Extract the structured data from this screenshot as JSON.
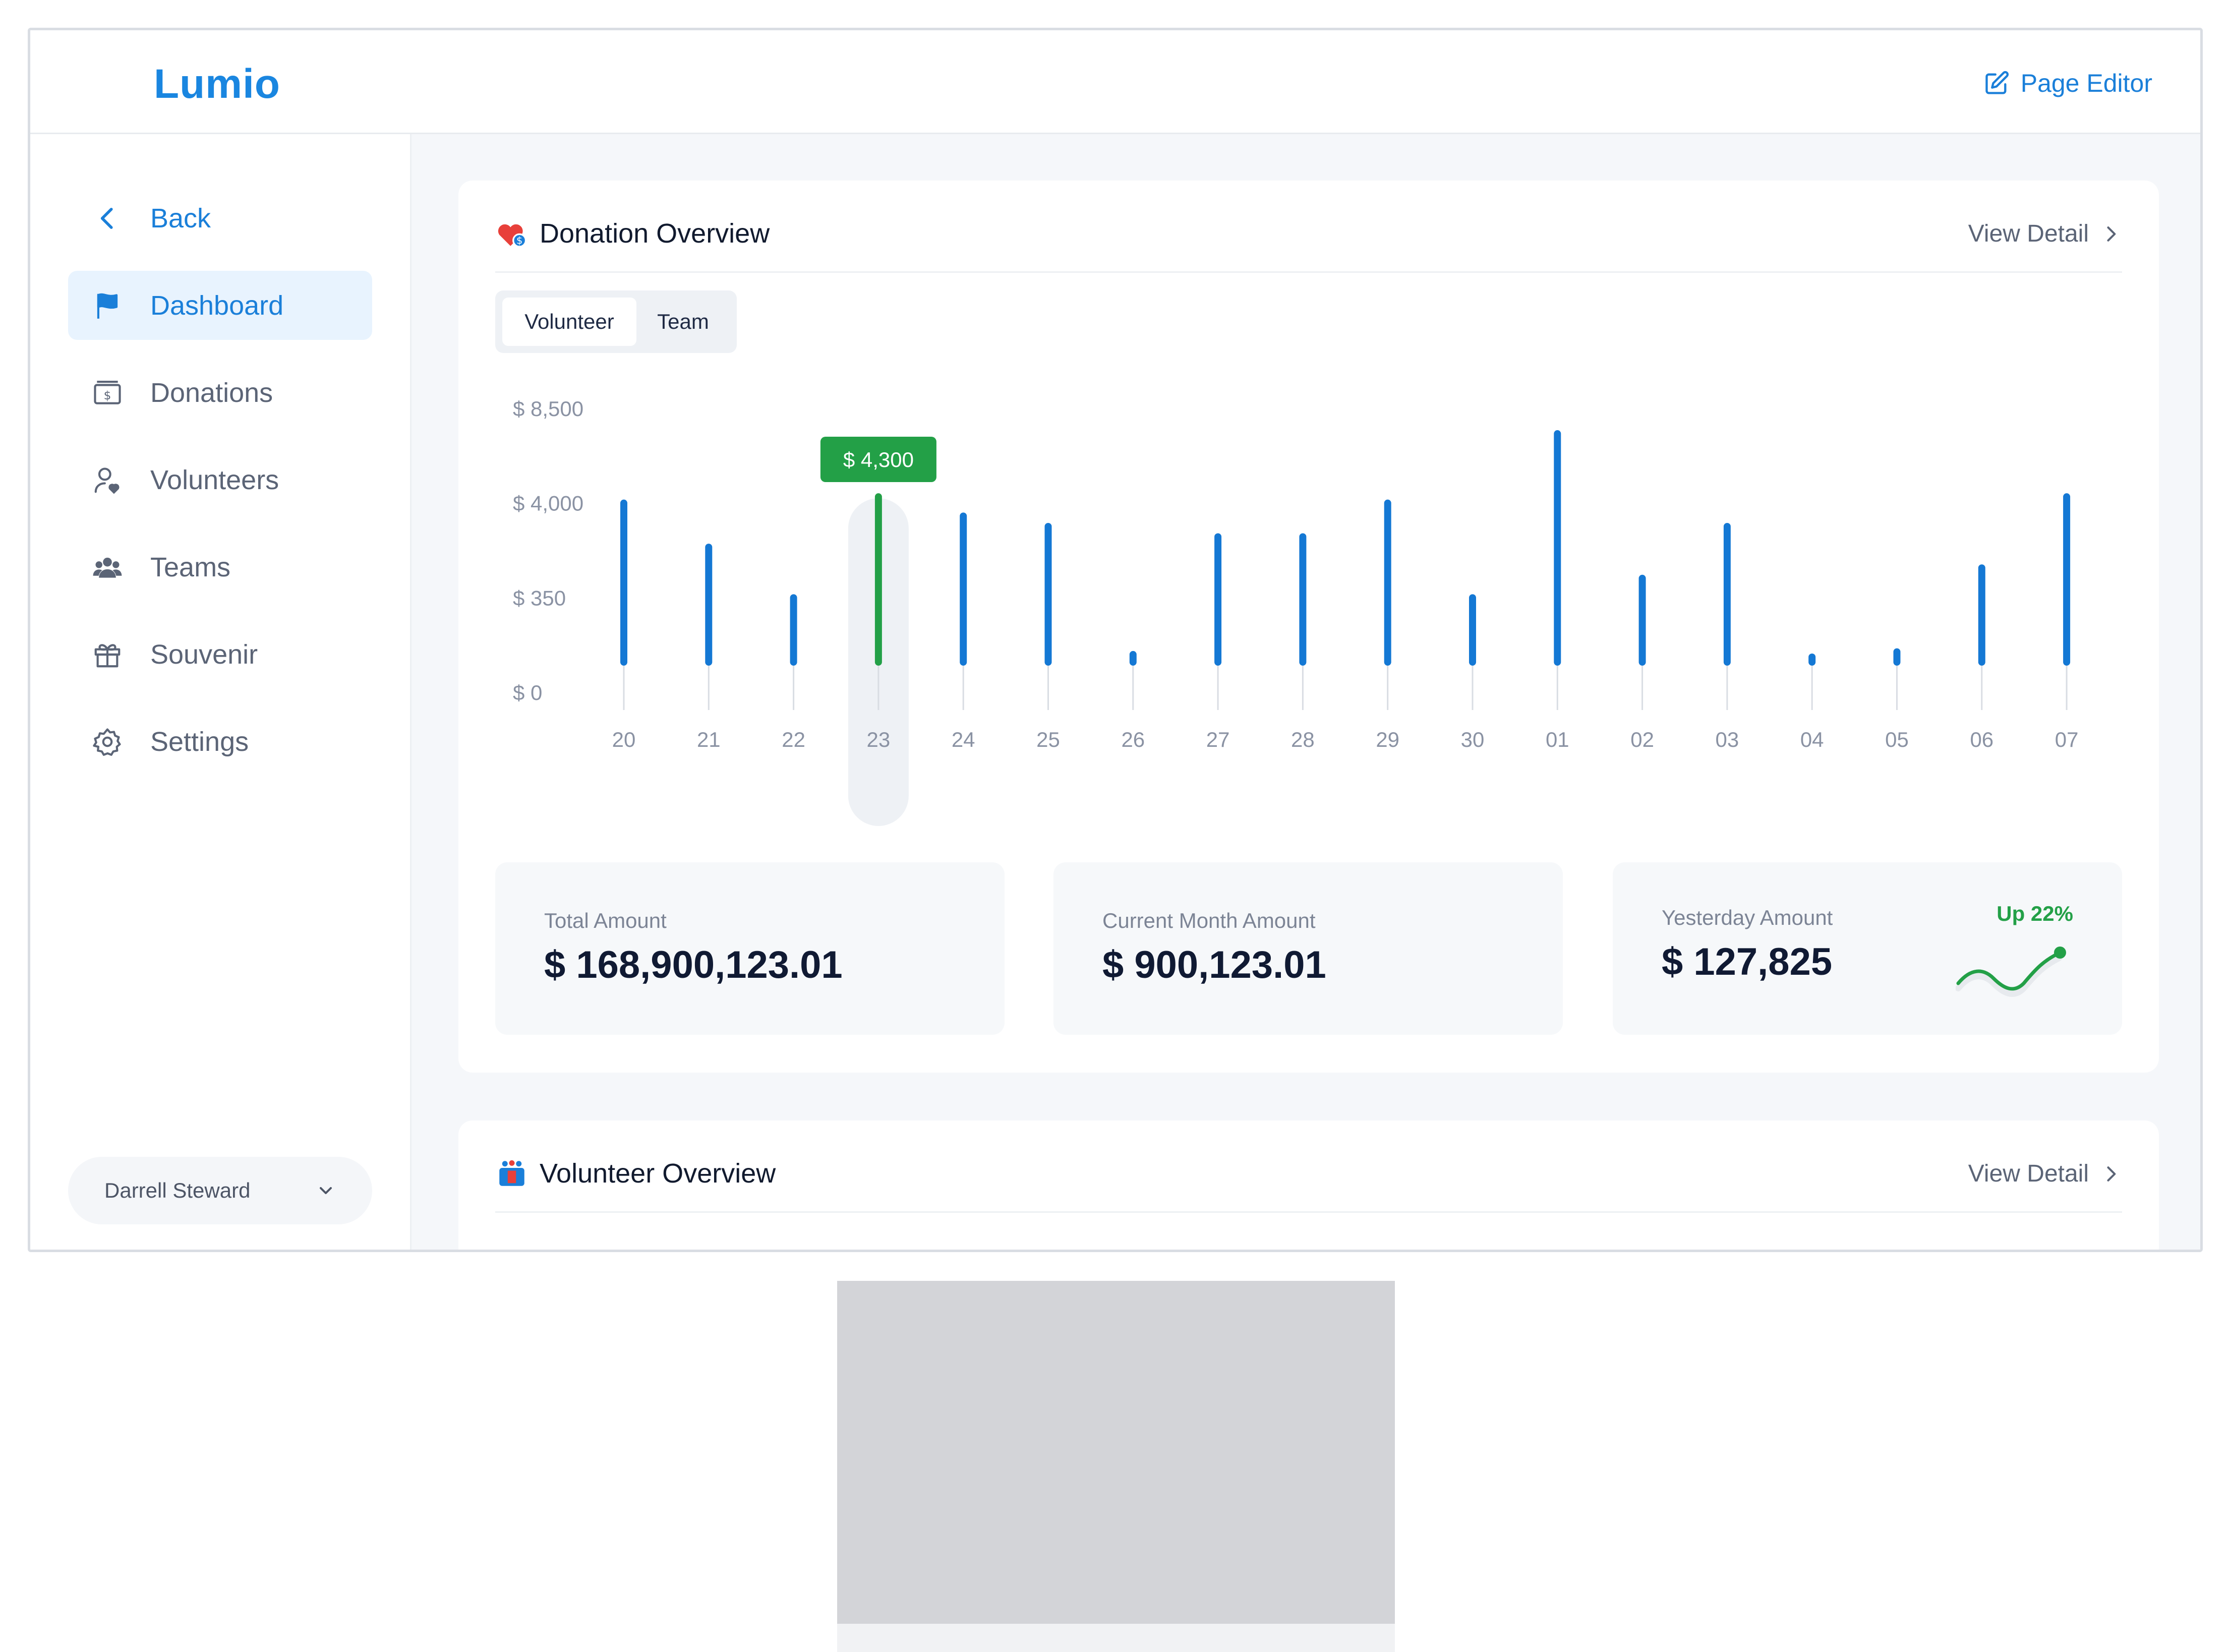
{
  "app": {
    "logo": "Lumio",
    "page_editor_label": "Page Editor"
  },
  "sidebar": {
    "back_label": "Back",
    "items": [
      {
        "label": "Dashboard",
        "icon": "flag-icon",
        "active": true
      },
      {
        "label": "Donations",
        "icon": "money-icon",
        "active": false
      },
      {
        "label": "Volunteers",
        "icon": "user-heart-icon",
        "active": false
      },
      {
        "label": "Teams",
        "icon": "team-icon",
        "active": false
      },
      {
        "label": "Souvenir",
        "icon": "gift-icon",
        "active": false
      },
      {
        "label": "Settings",
        "icon": "gear-icon",
        "active": false
      }
    ],
    "user_name": "Darrell Steward"
  },
  "donation_overview": {
    "title": "Donation Overview",
    "view_detail": "View Detail",
    "tabs": [
      "Volunteer",
      "Team"
    ],
    "selected_tab": "Volunteer",
    "stats": {
      "total_label": "Total Amount",
      "total_value": "$ 168,900,123.01",
      "month_label": "Current Month Amount",
      "month_value": "$ 900,123.01",
      "yesterday_label": "Yesterday Amount",
      "yesterday_value": "$ 127,825",
      "trend_label": "Up 22%"
    }
  },
  "volunteer_overview": {
    "title": "Volunteer Overview",
    "view_detail": "View Detail"
  },
  "colors": {
    "accent": "#1a86e0",
    "highlight": "#23a047",
    "bar": "#1478d4"
  },
  "chart_data": {
    "type": "bar",
    "y_tick_labels": [
      "$ 0",
      "$ 350",
      "$ 4,000",
      "$ 8,500"
    ],
    "y_tick_values": [
      0,
      350,
      4000,
      8500
    ],
    "scale": "nonlinear (ticks evenly spaced)",
    "categories": [
      "20",
      "21",
      "22",
      "23",
      "24",
      "25",
      "26",
      "27",
      "28",
      "29",
      "30",
      "01",
      "02",
      "03",
      "04",
      "05",
      "06",
      "07"
    ],
    "values": [
      4000,
      2300,
      350,
      4300,
      3500,
      3100,
      140,
      2700,
      2700,
      4000,
      350,
      7300,
      1100,
      3100,
      20,
      150,
      1500,
      4300
    ],
    "highlight_index": 3,
    "tooltip": "$ 4,300",
    "grid": false,
    "legend": "none"
  }
}
